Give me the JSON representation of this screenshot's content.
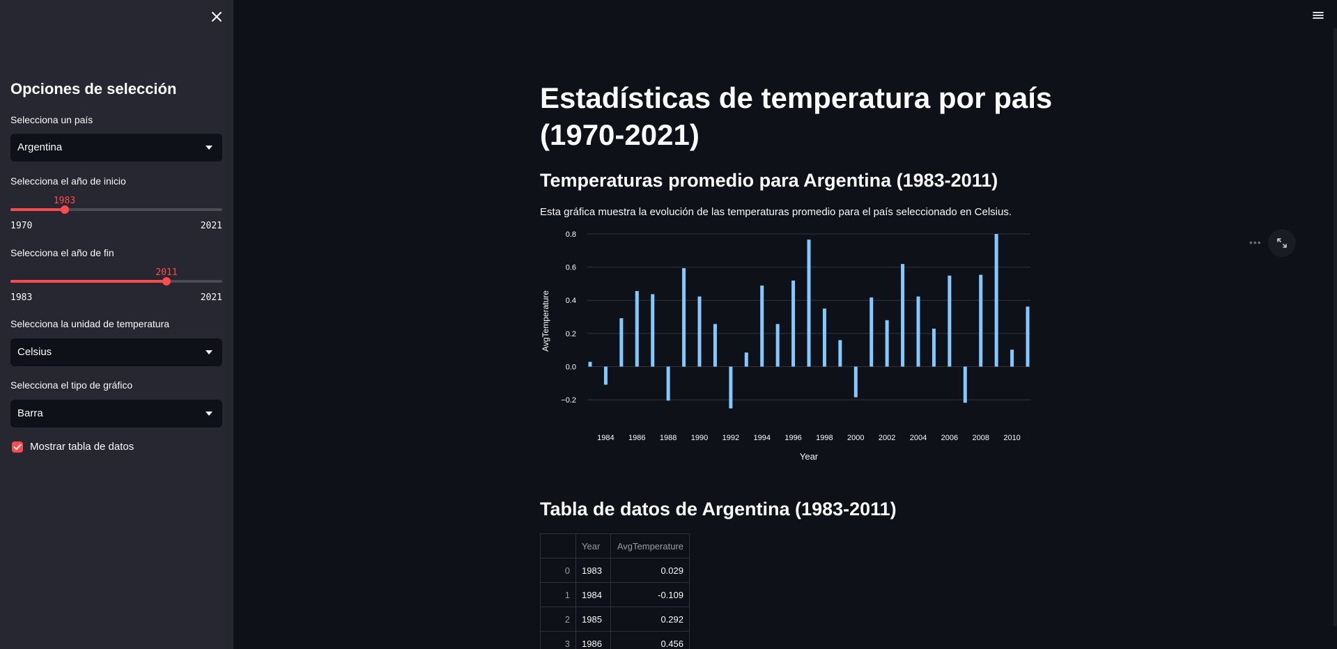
{
  "sidebar": {
    "title": "Opciones de selección",
    "country_label": "Selecciona un país",
    "country_value": "Argentina",
    "start_year_label": "Selecciona el año de inicio",
    "start_year": {
      "value": "1983",
      "min": "1970",
      "max": "2021",
      "fraction": 0.255
    },
    "end_year_label": "Selecciona el año de fin",
    "end_year": {
      "value": "2011",
      "min": "1983",
      "max": "2021",
      "fraction": 0.737
    },
    "unit_label": "Selecciona la unidad de temperatura",
    "unit_value": "Celsius",
    "chart_type_label": "Selecciona el tipo de gráfico",
    "chart_type_value": "Barra",
    "show_table_label": "Mostrar tabla de datos",
    "show_table_checked": true
  },
  "main": {
    "title": "Estadísticas de temperatura por país (1970-2021)",
    "chart_heading": "Temperaturas promedio para Argentina (1983-2011)",
    "chart_description": "Esta gráfica muestra la evolución de las temperaturas promedio para el país seleccionado en Celsius.",
    "table_heading": "Tabla de datos de Argentina (1983-2011)",
    "table": {
      "columns": [
        "",
        "Year",
        "AvgTemperature"
      ],
      "rows": [
        [
          "0",
          "1983",
          "0.029"
        ],
        [
          "1",
          "1984",
          "-0.109"
        ],
        [
          "2",
          "1985",
          "0.292"
        ],
        [
          "3",
          "1986",
          "0.456"
        ]
      ]
    }
  },
  "colors": {
    "accent": "#ff4b4b",
    "bar": "#83c9ff",
    "sidebar_bg": "#262730",
    "main_bg": "#0e1117"
  },
  "chart_data": {
    "type": "bar",
    "xlabel": "Year",
    "ylabel": "AvgTemperature",
    "ylim": [
      -0.25,
      0.8
    ],
    "yticks": [
      -0.2,
      0.0,
      0.2,
      0.4,
      0.6,
      0.8
    ],
    "ytick_labels": [
      "−0.2",
      "0.0",
      "0.2",
      "0.4",
      "0.6",
      "0.8"
    ],
    "xticks": [
      "1984",
      "1986",
      "1988",
      "1990",
      "1992",
      "1994",
      "1996",
      "1998",
      "2000",
      "2002",
      "2004",
      "2006",
      "2008",
      "2010"
    ],
    "x": [
      1983,
      1984,
      1985,
      1986,
      1987,
      1988,
      1989,
      1990,
      1991,
      1992,
      1993,
      1994,
      1995,
      1996,
      1997,
      1998,
      1999,
      2000,
      2001,
      2002,
      2003,
      2004,
      2005,
      2006,
      2007,
      2008,
      2009,
      2010,
      2011
    ],
    "values": [
      0.029,
      -0.109,
      0.292,
      0.456,
      0.437,
      -0.205,
      0.594,
      0.423,
      0.257,
      -0.252,
      0.085,
      0.489,
      0.257,
      0.519,
      0.766,
      0.35,
      0.16,
      -0.185,
      0.417,
      0.28,
      0.619,
      0.423,
      0.229,
      0.549,
      -0.218,
      0.554,
      0.8,
      0.102,
      0.362
    ]
  }
}
